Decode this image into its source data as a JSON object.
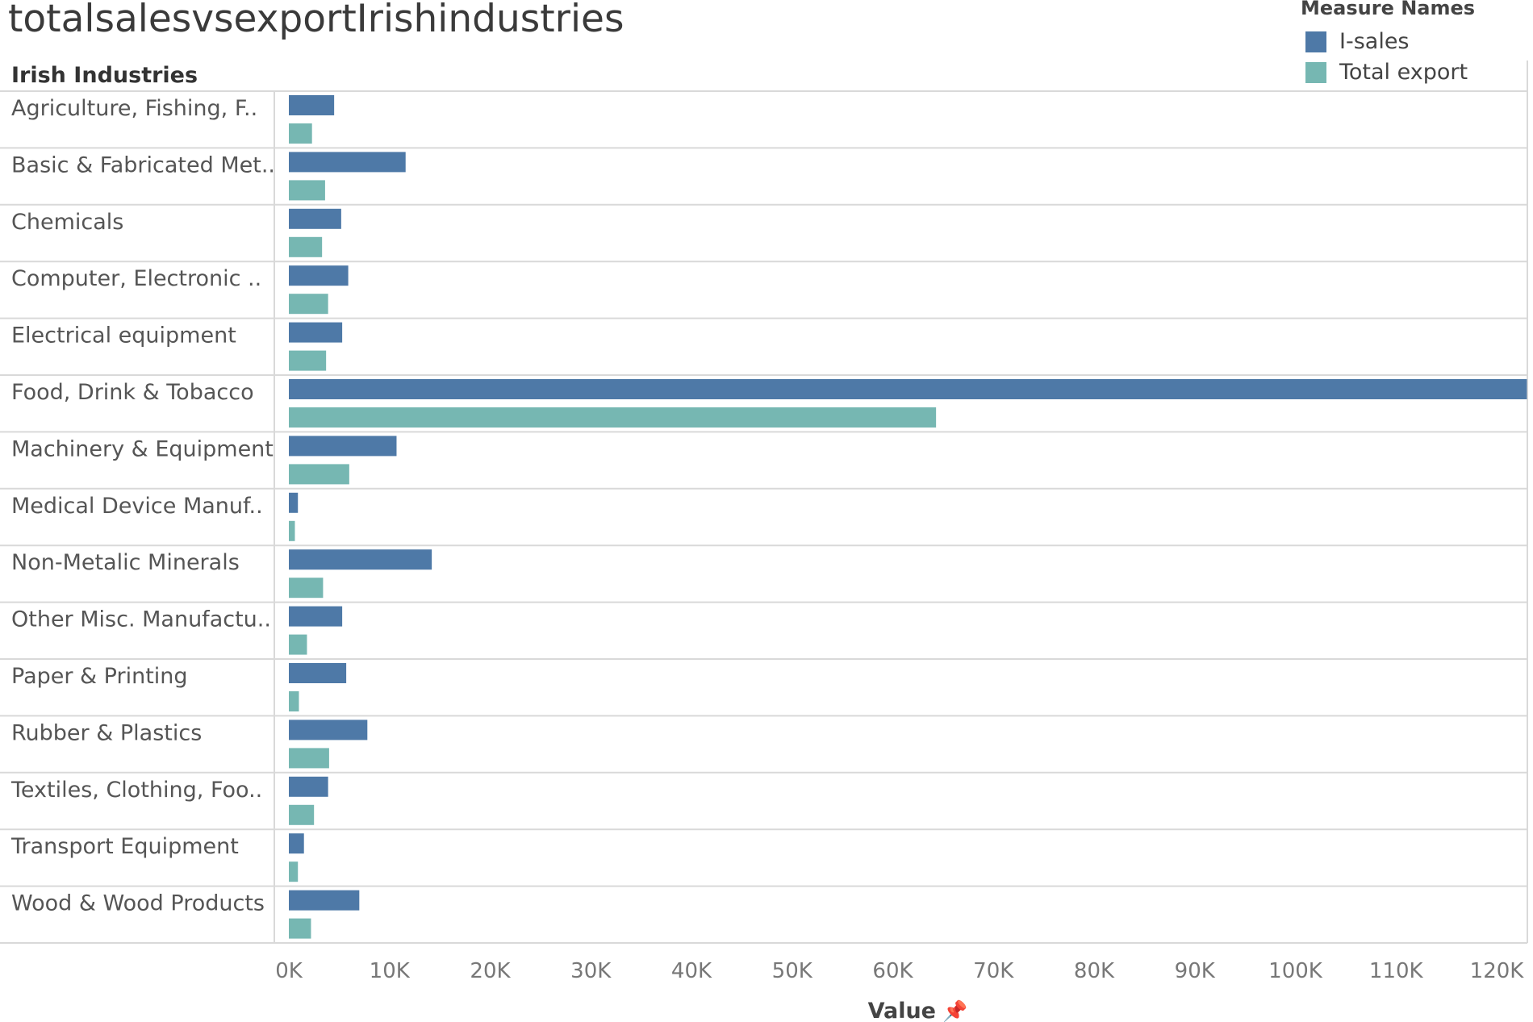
{
  "title": "totalsalesvsexportIrishindustries",
  "legend": {
    "title": "Measure Names",
    "items": [
      {
        "label": "I-sales",
        "color": "#4e79a7"
      },
      {
        "label": "Total export",
        "color": "#76b7b2"
      }
    ]
  },
  "chart_data": {
    "type": "bar",
    "orientation": "horizontal",
    "row_header": "Irish Industries",
    "xlabel": "Value",
    "xlabel_icon": "pin-icon",
    "xlim": [
      0,
      120000
    ],
    "xticks": [
      0,
      10000,
      20000,
      30000,
      40000,
      50000,
      60000,
      70000,
      80000,
      90000,
      100000,
      110000,
      120000
    ],
    "xtick_labels": [
      "0K",
      "10K",
      "20K",
      "30K",
      "40K",
      "50K",
      "60K",
      "70K",
      "80K",
      "90K",
      "100K",
      "110K",
      "120K"
    ],
    "categories": [
      "Agriculture, Fishing, F..",
      "Basic & Fabricated Met..",
      "Chemicals",
      "Computer, Electronic ..",
      "Electrical equipment",
      "Food, Drink & Tobacco",
      "Machinery & Equipment",
      "Medical Device Manuf..",
      "Non-Metalic Minerals",
      "Other Misc. Manufactu..",
      "Paper & Printing",
      "Rubber & Plastics",
      "Textiles, Clothing, Foo..",
      "Transport Equipment",
      "Wood & Wood Products"
    ],
    "series": [
      {
        "name": "I-sales",
        "color": "#4e79a7",
        "values": [
          4500,
          11600,
          5200,
          5900,
          5300,
          123000,
          10700,
          900,
          14200,
          5300,
          5700,
          7800,
          3900,
          1500,
          7000
        ]
      },
      {
        "name": "Total export",
        "color": "#76b7b2",
        "values": [
          2300,
          3600,
          3300,
          3900,
          3700,
          64300,
          6000,
          600,
          3400,
          1800,
          1000,
          4000,
          2500,
          900,
          2200
        ]
      }
    ],
    "grid": false,
    "legend_position": "top-right"
  }
}
